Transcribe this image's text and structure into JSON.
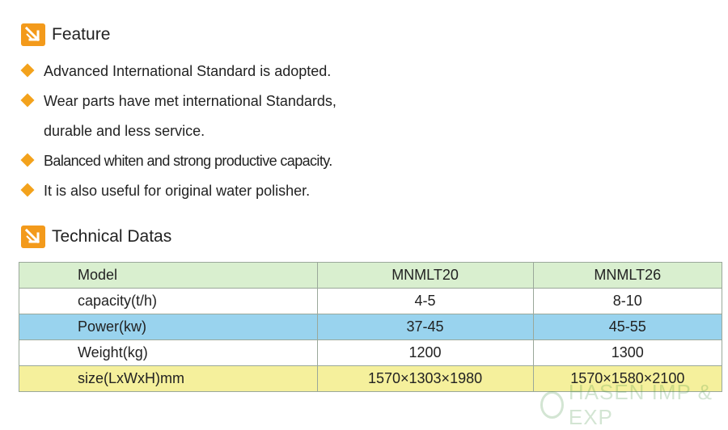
{
  "feature": {
    "title": "Feature",
    "items": [
      {
        "lines": [
          "Advanced International Standard is adopted."
        ]
      },
      {
        "lines": [
          "Wear parts have met international Standards,",
          "durable and less service."
        ]
      },
      {
        "lines": [
          "Balanced whiten and strong productive capacity."
        ]
      },
      {
        "lines": [
          "It is also useful for original water polisher."
        ]
      }
    ]
  },
  "technical": {
    "title": "Technical Datas",
    "rows": [
      {
        "label": "Model",
        "v1": "MNMLT20",
        "v2": "MNMLT26"
      },
      {
        "label": "capacity(t/h)",
        "v1": "4-5",
        "v2": "8-10"
      },
      {
        "label": "Power(kw)",
        "v1": "37-45",
        "v2": "45-55"
      },
      {
        "label": "Weight(kg)",
        "v1": "1200",
        "v2": "1300"
      },
      {
        "label": "size(LxWxH)mm",
        "v1": "1570×1303×1980",
        "v2": "1570×1580×2100"
      }
    ]
  },
  "watermark": {
    "text": "HASEN IMP & EXP"
  },
  "colors": {
    "icon": "#f39a1b",
    "bullet": "#f3a21c",
    "row_green": "#d9efcf",
    "row_blue": "#99d3ee",
    "row_yellow": "#f5f09c"
  },
  "icons": {
    "section": "down-right-arrow-icon",
    "bullet": "diamond-bullet-icon"
  }
}
